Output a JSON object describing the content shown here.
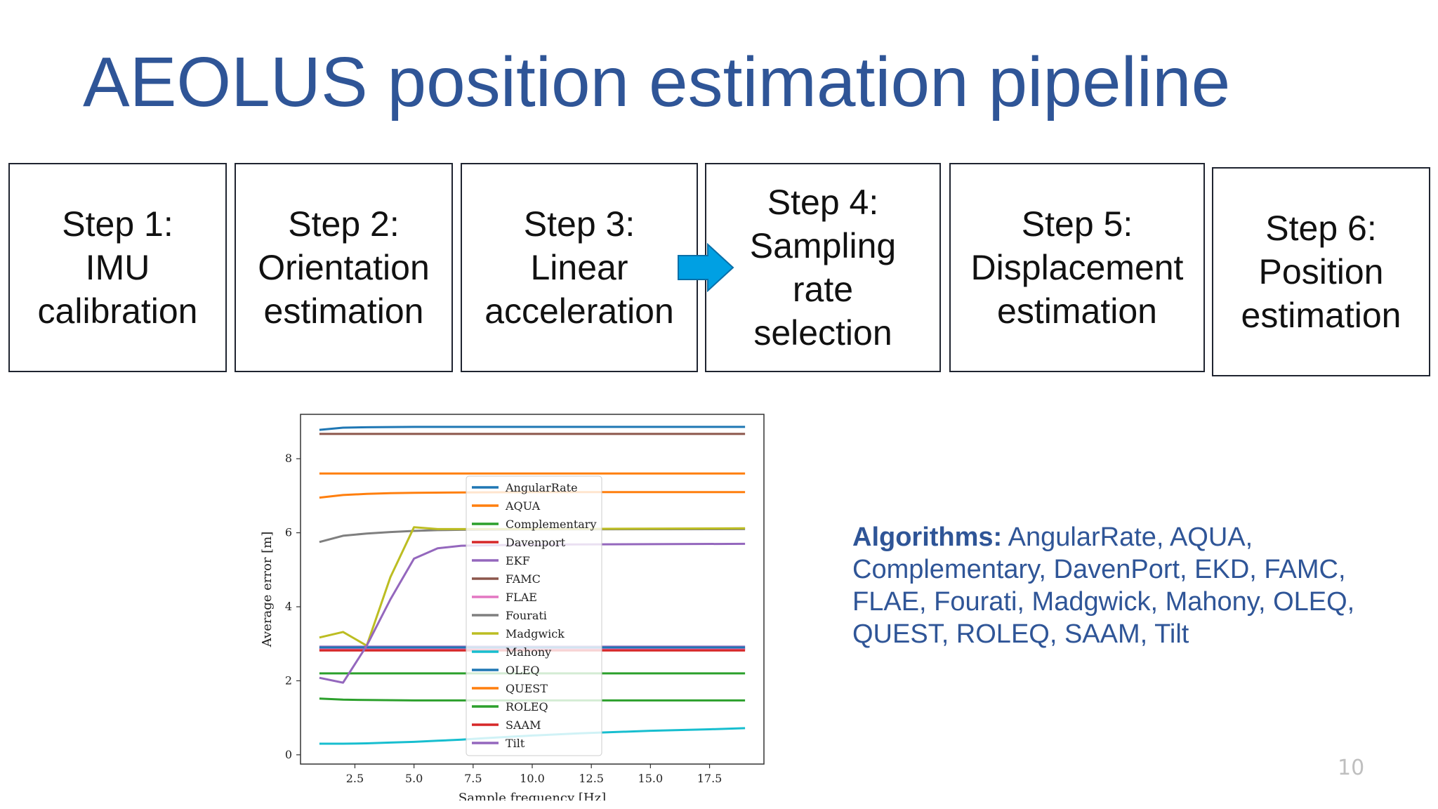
{
  "slide": {
    "title": "AEOLUS position estimation pipeline",
    "page_number": "10",
    "steps": [
      {
        "label": "Step 1:\nIMU\ncalibration"
      },
      {
        "label": "Step 2:\nOrientation\nestimation"
      },
      {
        "label": "Step 3:\nLinear\nacceleration"
      },
      {
        "label": "Step 4:\nSampling\nrate\nselection"
      },
      {
        "label": "Step 5:\nDisplacement\nestimation"
      },
      {
        "label": "Step 6:\nPosition\nestimation"
      }
    ],
    "algorithms_label": "Algorithms:",
    "algorithms_text": " AngularRate, AQUA, Complementary, DavenPort, EKD, FAMC, FLAE, Fourati, Madgwick, Mahony, OLEQ, QUEST, ROLEQ, SAAM, Tilt",
    "arrow_color": "#00a0e3"
  },
  "chart_data": {
    "type": "line",
    "title": "",
    "xlabel": "Sample frequency [Hz]",
    "ylabel": "Average error [m]",
    "xlim": [
      0.2,
      19.8
    ],
    "ylim": [
      -0.25,
      9.2
    ],
    "xticks": [
      2.5,
      5.0,
      7.5,
      10.0,
      12.5,
      15.0,
      17.5
    ],
    "xtick_labels": [
      "2.5",
      "5.0",
      "7.5",
      "10.0",
      "12.5",
      "15.0",
      "17.5"
    ],
    "yticks": [
      0,
      2,
      4,
      6,
      8
    ],
    "ytick_labels": [
      "0",
      "2",
      "4",
      "6",
      "8"
    ],
    "grid": false,
    "legend_position": "center",
    "series": [
      {
        "name": "AngularRate",
        "color": "#1f77b4",
        "x": [
          1,
          2,
          3,
          5,
          7,
          19
        ],
        "y": [
          8.78,
          8.84,
          8.85,
          8.86,
          8.86,
          8.86
        ]
      },
      {
        "name": "AQUA",
        "color": "#ff7f0e",
        "x": [
          1,
          19
        ],
        "y": [
          7.6,
          7.6
        ]
      },
      {
        "name": "Complementary",
        "color": "#2ca02c",
        "x": [
          1,
          2,
          3,
          5,
          8,
          19
        ],
        "y": [
          1.52,
          1.49,
          1.48,
          1.47,
          1.47,
          1.47
        ]
      },
      {
        "name": "Davenport",
        "color": "#d62728",
        "x": [
          1,
          19
        ],
        "y": [
          2.85,
          2.85
        ]
      },
      {
        "name": "EKF",
        "color": "#9467bd",
        "x": [
          1,
          19
        ],
        "y": [
          2.92,
          2.92
        ]
      },
      {
        "name": "FAMC",
        "color": "#8c564b",
        "x": [
          1,
          19
        ],
        "y": [
          8.67,
          8.67
        ]
      },
      {
        "name": "FLAE",
        "color": "#e377c2",
        "x": [
          1,
          19
        ],
        "y": [
          2.88,
          2.88
        ]
      },
      {
        "name": "Fourati",
        "color": "#7f7f7f",
        "x": [
          1,
          2,
          3,
          4,
          5,
          6,
          7,
          10,
          19
        ],
        "y": [
          5.75,
          5.92,
          5.98,
          6.02,
          6.05,
          6.07,
          6.08,
          6.09,
          6.1
        ]
      },
      {
        "name": "Madgwick",
        "color": "#bcbd22",
        "x": [
          1,
          2,
          3,
          4,
          5,
          6,
          7,
          10,
          19
        ],
        "y": [
          3.17,
          3.32,
          2.95,
          4.8,
          6.15,
          6.1,
          6.1,
          6.1,
          6.12
        ]
      },
      {
        "name": "Mahony",
        "color": "#17becf",
        "x": [
          1,
          2,
          3,
          4,
          5,
          6,
          7,
          8,
          10,
          12,
          15,
          17.5,
          19
        ],
        "y": [
          0.3,
          0.3,
          0.31,
          0.33,
          0.35,
          0.38,
          0.41,
          0.45,
          0.52,
          0.58,
          0.65,
          0.69,
          0.72
        ]
      },
      {
        "name": "OLEQ",
        "color": "#1f77b4",
        "x": [
          1,
          19
        ],
        "y": [
          2.9,
          2.9
        ]
      },
      {
        "name": "QUEST",
        "color": "#ff7f0e",
        "x": [
          1,
          2,
          3,
          4,
          5,
          7,
          10,
          19
        ],
        "y": [
          6.95,
          7.02,
          7.05,
          7.07,
          7.08,
          7.09,
          7.1,
          7.1
        ]
      },
      {
        "name": "ROLEQ",
        "color": "#2ca02c",
        "x": [
          1,
          19
        ],
        "y": [
          2.2,
          2.2
        ]
      },
      {
        "name": "SAAM",
        "color": "#d62728",
        "x": [
          1,
          19
        ],
        "y": [
          2.82,
          2.82
        ]
      },
      {
        "name": "Tilt",
        "color": "#9467bd",
        "x": [
          1,
          2,
          3,
          4,
          5,
          6,
          7,
          10,
          19
        ],
        "y": [
          2.08,
          1.95,
          2.95,
          4.2,
          5.3,
          5.58,
          5.65,
          5.68,
          5.7
        ]
      }
    ]
  }
}
